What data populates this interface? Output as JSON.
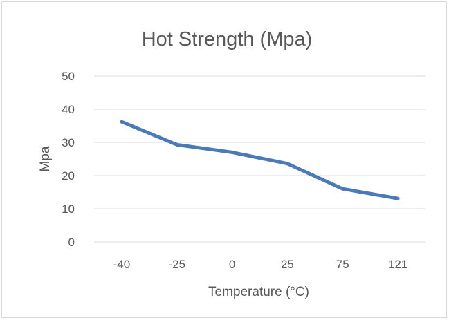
{
  "chart_data": {
    "type": "line",
    "title": "Hot Strength (Mpa)",
    "xlabel": "Temperature (°C)",
    "ylabel": "Mpa",
    "categories": [
      "-40",
      "-25",
      "0",
      "25",
      "75",
      "121"
    ],
    "series": [
      {
        "values": [
          36.2,
          29.3,
          27.0,
          23.6,
          16.0,
          13.1
        ]
      }
    ],
    "ylim": [
      0,
      50
    ],
    "yticks": [
      "0",
      "10",
      "20",
      "30",
      "40",
      "50"
    ],
    "grid": true,
    "legend": "none",
    "colors": {
      "series": "#4a7ab8",
      "grid": "#d9d9d9",
      "text": "#595959"
    }
  }
}
